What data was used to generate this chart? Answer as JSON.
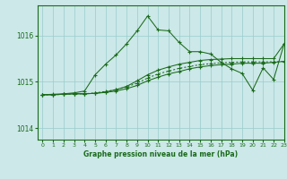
{
  "title": "Graphe pression niveau de la mer (hPa)",
  "bg_color": "#cce8e8",
  "grid_color": "#99cccc",
  "line_color": "#1a6b1a",
  "xlim": [
    -0.5,
    23
  ],
  "ylim": [
    1013.75,
    1016.65
  ],
  "yticks": [
    1014,
    1015,
    1016
  ],
  "xticks": [
    0,
    1,
    2,
    3,
    4,
    5,
    6,
    7,
    8,
    9,
    10,
    11,
    12,
    13,
    14,
    15,
    16,
    17,
    18,
    19,
    20,
    21,
    22,
    23
  ],
  "s_main": [
    1014.72,
    1014.73,
    1014.74,
    1014.76,
    1014.8,
    1015.15,
    1015.38,
    1015.58,
    1015.82,
    1016.1,
    1016.42,
    1016.12,
    1016.1,
    1015.85,
    1015.65,
    1015.65,
    1015.6,
    1015.42,
    1015.28,
    1015.18,
    1014.82,
    1015.3,
    1015.05,
    1015.82
  ],
  "s_line1": [
    1014.72,
    1014.72,
    1014.73,
    1014.74,
    1014.74,
    1014.75,
    1014.78,
    1014.83,
    1014.9,
    1015.02,
    1015.15,
    1015.25,
    1015.32,
    1015.38,
    1015.42,
    1015.46,
    1015.48,
    1015.49,
    1015.5,
    1015.5,
    1015.5,
    1015.5,
    1015.5,
    1015.82
  ],
  "s_line2": [
    1014.72,
    1014.72,
    1014.73,
    1014.74,
    1014.74,
    1014.75,
    1014.77,
    1014.8,
    1014.85,
    1014.92,
    1015.02,
    1015.1,
    1015.17,
    1015.22,
    1015.28,
    1015.32,
    1015.35,
    1015.37,
    1015.38,
    1015.4,
    1015.4,
    1015.4,
    1015.42,
    1015.44
  ],
  "s_dotted": [
    1014.72,
    1014.72,
    1014.73,
    1014.74,
    1014.74,
    1014.76,
    1014.79,
    1014.83,
    1014.89,
    1014.97,
    1015.08,
    1015.17,
    1015.23,
    1015.29,
    1015.33,
    1015.37,
    1015.39,
    1015.41,
    1015.42,
    1015.43,
    1015.43,
    1015.43,
    1015.43,
    1015.44
  ]
}
